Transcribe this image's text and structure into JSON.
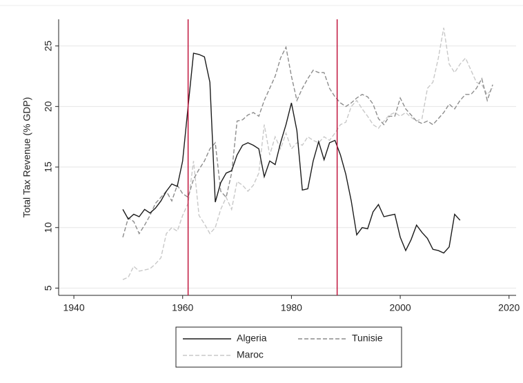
{
  "chart_data": {
    "type": "line",
    "y_label": "Total Tax Revenue (% GDP)",
    "x": [
      1949,
      1950,
      1951,
      1952,
      1953,
      1954,
      1955,
      1956,
      1957,
      1958,
      1959,
      1960,
      1961,
      1962,
      1963,
      1964,
      1965,
      1966,
      1967,
      1968,
      1969,
      1970,
      1971,
      1972,
      1973,
      1974,
      1975,
      1976,
      1977,
      1978,
      1979,
      1980,
      1981,
      1982,
      1983,
      1984,
      1985,
      1986,
      1987,
      1988,
      1989,
      1990,
      1991,
      1992,
      1993,
      1994,
      1995,
      1996,
      1997,
      1998,
      1999,
      2000,
      2001,
      2002,
      2003,
      2004,
      2005,
      2006,
      2007,
      2008,
      2009,
      2010,
      2011,
      2012,
      2013,
      2014,
      2015,
      2016,
      2017
    ],
    "series": [
      {
        "name": "Algeria",
        "color": "#1a1a1a",
        "dash": "solid",
        "values": [
          11.5,
          10.7,
          11.1,
          10.9,
          11.5,
          11.2,
          11.6,
          12.2,
          13.0,
          13.6,
          13.4,
          15.5,
          20.0,
          24.4,
          24.3,
          24.1,
          22.0,
          12.1,
          13.7,
          14.5,
          14.7,
          16.0,
          16.8,
          17.0,
          16.8,
          16.5,
          14.2,
          15.5,
          15.2,
          17.0,
          18.5,
          20.3,
          18.0,
          13.1,
          13.2,
          15.5,
          17.1,
          15.6,
          17.0,
          17.2,
          16.0,
          14.4,
          12.2,
          9.4,
          10.0,
          9.9,
          11.3,
          11.9,
          10.9,
          11.0,
          11.1,
          9.2,
          8.1,
          9.0,
          10.2,
          9.6,
          9.1,
          8.2,
          8.1,
          7.9,
          8.4,
          11.1,
          10.6,
          null,
          null,
          null,
          null,
          null,
          null
        ]
      },
      {
        "name": "Tunisie",
        "color": "#8c8c8c",
        "dash": "dashed",
        "values": [
          9.2,
          10.8,
          10.5,
          9.5,
          10.2,
          11,
          12,
          12.5,
          13,
          12.2,
          13.5,
          12.8,
          12.5,
          14,
          14.8,
          15.5,
          16.5,
          17,
          13,
          12.5,
          14.5,
          18.8,
          18.9,
          19.3,
          19.5,
          19.2,
          20.5,
          21.5,
          22.5,
          24,
          24.9,
          22.5,
          20.5,
          21.5,
          22.3,
          23,
          22.8,
          22.8,
          21.5,
          20.8,
          20.3,
          20,
          20.3,
          20.7,
          21,
          20.8,
          20.2,
          19,
          18.5,
          19.2,
          19.2,
          20.7,
          19.8,
          19.3,
          18.8,
          18.6,
          18.8,
          18.5,
          19,
          19.5,
          20.2,
          19.8,
          20.5,
          21,
          21,
          21.5,
          22.3,
          20.5,
          21.8
        ]
      },
      {
        "name": "Maroc",
        "color": "#c8c8c8",
        "dash": "dashed",
        "values": [
          5.7,
          5.9,
          6.8,
          6.4,
          6.5,
          6.6,
          7.0,
          7.5,
          9.5,
          10,
          9.7,
          11,
          12,
          15.5,
          11,
          10.3,
          9.5,
          10,
          11.5,
          12.5,
          11.5,
          13.8,
          13.5,
          13,
          13.5,
          14.5,
          18.5,
          16,
          17.5,
          16.5,
          17.8,
          16.5,
          17,
          16.8,
          17.5,
          17.2,
          17,
          17.5,
          17.2,
          17.8,
          18.5,
          18.7,
          20,
          20.5,
          19.8,
          19.2,
          18.5,
          18.2,
          18.8,
          19.3,
          19.5,
          19.2,
          19.5,
          19.1,
          18.8,
          19,
          21.5,
          22,
          24,
          26.5,
          23.5,
          22.8,
          23.5,
          24,
          23,
          22,
          21.8,
          21,
          21.5
        ]
      }
    ],
    "vlines": [
      1961,
      1988.4
    ],
    "vline_color": "#c0143c",
    "xlim": [
      1937.2,
      2021.3
    ],
    "xticks": [
      1940,
      1960,
      1980,
      2000,
      2020
    ],
    "ylim": [
      4.4,
      27.2
    ],
    "yticks": [
      5,
      10,
      15,
      20,
      25
    ],
    "grid": true,
    "legend": "bottom"
  }
}
